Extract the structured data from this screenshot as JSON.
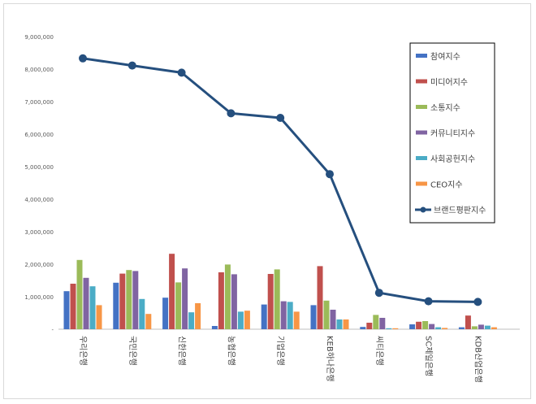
{
  "chart_data": {
    "type": "bar",
    "title": "",
    "xlabel": "",
    "ylabel": "",
    "ylim": [
      0,
      9000000
    ],
    "yticks": [
      0,
      1000000,
      2000000,
      3000000,
      4000000,
      5000000,
      6000000,
      7000000,
      8000000,
      9000000
    ],
    "ytick_labels": [
      "-",
      "1,000,000",
      "2,000,000",
      "3,000,000",
      "4,000,000",
      "5,000,000",
      "6,000,000",
      "7,000,000",
      "8,000,000",
      "9,000,000"
    ],
    "categories": [
      "우리은행",
      "국민은행",
      "신한은행",
      "농협은행",
      "기업은행",
      "KEB하나은행",
      "씨티은행",
      "SC제일은행",
      "KDB산업은행"
    ],
    "series": [
      {
        "name": "참여지수",
        "kind": "bar",
        "color": "#4472c4",
        "values": [
          1170000,
          1430000,
          970000,
          100000,
          760000,
          740000,
          70000,
          150000,
          60000
        ]
      },
      {
        "name": "미디어지수",
        "kind": "bar",
        "color": "#c0504d",
        "values": [
          1400000,
          1710000,
          2320000,
          1750000,
          1700000,
          1940000,
          200000,
          230000,
          420000
        ]
      },
      {
        "name": "소통지수",
        "kind": "bar",
        "color": "#9bbb59",
        "values": [
          2130000,
          1820000,
          1440000,
          1990000,
          1840000,
          880000,
          440000,
          250000,
          90000
        ]
      },
      {
        "name": "커뮤니티지수",
        "kind": "bar",
        "color": "#8064a2",
        "values": [
          1580000,
          1790000,
          1870000,
          1690000,
          860000,
          600000,
          350000,
          160000,
          140000
        ]
      },
      {
        "name": "사회공헌지수",
        "kind": "bar",
        "color": "#4bacc6",
        "values": [
          1320000,
          930000,
          520000,
          540000,
          840000,
          300000,
          30000,
          60000,
          110000
        ]
      },
      {
        "name": "CEO지수",
        "kind": "bar",
        "color": "#f79646",
        "values": [
          740000,
          470000,
          800000,
          570000,
          540000,
          300000,
          30000,
          40000,
          60000
        ]
      },
      {
        "name": "브랜드평판지수",
        "kind": "line",
        "color": "#254f7e",
        "values": [
          8330000,
          8110000,
          7890000,
          6640000,
          6500000,
          4770000,
          1120000,
          860000,
          840000
        ]
      }
    ],
    "legend_position": "right"
  }
}
